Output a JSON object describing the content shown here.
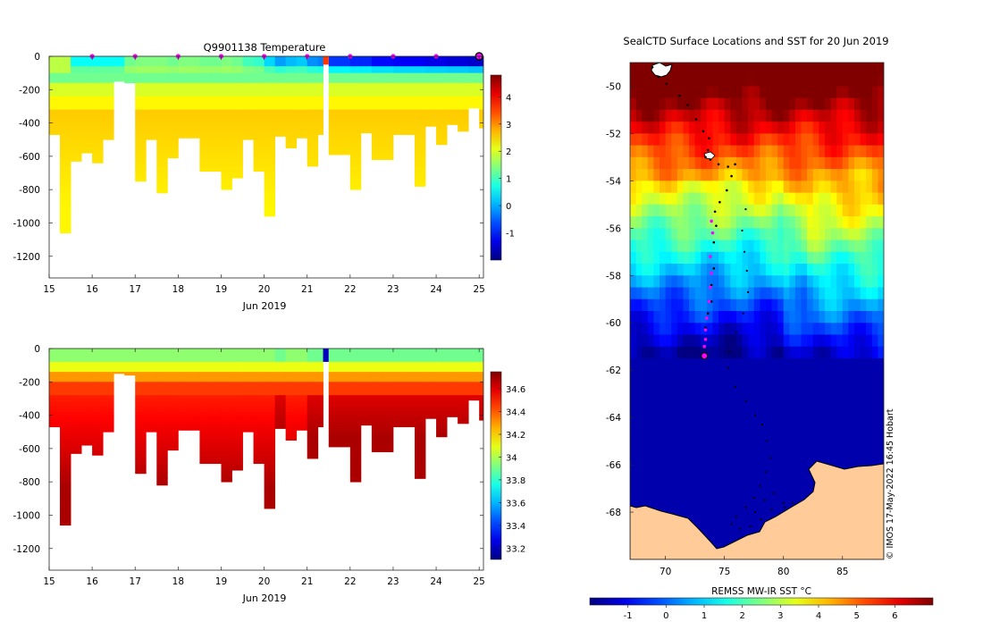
{
  "figure": {
    "credit": "© IMOS 17-May-2022 16:45 Hobart"
  },
  "chart_data": [
    {
      "id": "temperature",
      "type": "heatmap",
      "title": "Q9901138  Temperature",
      "xlabel": "Jun 2019",
      "ylabel": "",
      "xlim": [
        15,
        25.1
      ],
      "ylim": [
        -1330,
        0
      ],
      "x_ticks": [
        15,
        16,
        17,
        18,
        19,
        20,
        21,
        22,
        23,
        24,
        25
      ],
      "y_ticks": [
        0,
        -200,
        -400,
        -600,
        -800,
        -1000,
        -1200
      ],
      "surface_markers_days": [
        16,
        17,
        18,
        19,
        20,
        21,
        22,
        23,
        24
      ],
      "highlight_day": 25,
      "colorbar": {
        "min": -2,
        "max": 4.8,
        "ticks": [
          -1,
          0,
          1,
          2,
          3,
          4
        ]
      },
      "profiles": [
        {
          "day": 15.0,
          "w": 0.25,
          "max_depth": 470,
          "surface": 1.8
        },
        {
          "day": 15.25,
          "w": 0.25,
          "max_depth": 1060,
          "surface": 1.8
        },
        {
          "day": 15.5,
          "w": 0.25,
          "max_depth": 630,
          "surface": 0.6
        },
        {
          "day": 15.75,
          "w": 0.25,
          "max_depth": 580,
          "surface": 0.6
        },
        {
          "day": 16.0,
          "w": 0.25,
          "max_depth": 640,
          "surface": 0.6
        },
        {
          "day": 16.25,
          "w": 0.25,
          "max_depth": 500,
          "surface": 0.6
        },
        {
          "day": 16.5,
          "w": 0.25,
          "max_depth": 150,
          "surface": 0.6
        },
        {
          "day": 16.75,
          "w": 0.25,
          "max_depth": 160,
          "surface": 1.3
        },
        {
          "day": 17.0,
          "w": 0.25,
          "max_depth": 750,
          "surface": 1.4
        },
        {
          "day": 17.25,
          "w": 0.25,
          "max_depth": 500,
          "surface": 1.4
        },
        {
          "day": 17.5,
          "w": 0.25,
          "max_depth": 820,
          "surface": 1.4
        },
        {
          "day": 17.75,
          "w": 0.25,
          "max_depth": 610,
          "surface": 1.3
        },
        {
          "day": 18.0,
          "w": 0.25,
          "max_depth": 490,
          "surface": 1.4
        },
        {
          "day": 18.25,
          "w": 0.25,
          "max_depth": 490,
          "surface": 1.4
        },
        {
          "day": 18.5,
          "w": 0.25,
          "max_depth": 690,
          "surface": 1.3
        },
        {
          "day": 18.75,
          "w": 0.25,
          "max_depth": 690,
          "surface": 1.3
        },
        {
          "day": 19.0,
          "w": 0.25,
          "max_depth": 800,
          "surface": 1.4
        },
        {
          "day": 19.25,
          "w": 0.25,
          "max_depth": 730,
          "surface": 1.3
        },
        {
          "day": 19.5,
          "w": 0.25,
          "max_depth": 500,
          "surface": 1.0
        },
        {
          "day": 19.75,
          "w": 0.25,
          "max_depth": 690,
          "surface": 0.9
        },
        {
          "day": 20.0,
          "w": 0.25,
          "max_depth": 960,
          "surface": 0.3
        },
        {
          "day": 20.25,
          "w": 0.25,
          "max_depth": 480,
          "surface": -0.1
        },
        {
          "day": 20.5,
          "w": 0.25,
          "max_depth": 550,
          "surface": 0.1
        },
        {
          "day": 20.75,
          "w": 0.25,
          "max_depth": 490,
          "surface": 0.2
        },
        {
          "day": 21.0,
          "w": 0.25,
          "max_depth": 660,
          "surface": -0.2
        },
        {
          "day": 21.25,
          "w": 0.12,
          "max_depth": 470,
          "surface": -0.3
        },
        {
          "day": 21.5,
          "w": 0.25,
          "max_depth": 590,
          "surface": -0.8
        },
        {
          "day": 21.75,
          "w": 0.25,
          "max_depth": 590,
          "surface": -0.8
        },
        {
          "day": 22.0,
          "w": 0.25,
          "max_depth": 800,
          "surface": -0.9
        },
        {
          "day": 22.25,
          "w": 0.25,
          "max_depth": 460,
          "surface": -0.9
        },
        {
          "day": 22.5,
          "w": 0.25,
          "max_depth": 620,
          "surface": -1.1
        },
        {
          "day": 22.75,
          "w": 0.25,
          "max_depth": 620,
          "surface": -1.1
        },
        {
          "day": 23.0,
          "w": 0.25,
          "max_depth": 470,
          "surface": -1.2
        },
        {
          "day": 23.25,
          "w": 0.25,
          "max_depth": 470,
          "surface": -1.2
        },
        {
          "day": 23.5,
          "w": 0.25,
          "max_depth": 780,
          "surface": -1.2
        },
        {
          "day": 23.75,
          "w": 0.25,
          "max_depth": 420,
          "surface": -1.3
        },
        {
          "day": 24.0,
          "w": 0.25,
          "max_depth": 530,
          "surface": -1.3
        },
        {
          "day": 24.25,
          "w": 0.25,
          "max_depth": 410,
          "surface": -1.4
        },
        {
          "day": 24.5,
          "w": 0.25,
          "max_depth": 450,
          "surface": -1.4
        },
        {
          "day": 24.75,
          "w": 0.25,
          "max_depth": 310,
          "surface": -1.5
        },
        {
          "day": 25.0,
          "w": 0.1,
          "max_depth": 430,
          "surface": -1.5
        }
      ],
      "gap": {
        "day": 21.37,
        "w": 0.13,
        "max_depth": 50,
        "value": 3.6
      }
    },
    {
      "id": "salinity",
      "type": "heatmap",
      "title": "",
      "xlabel": "Jun 2019",
      "ylabel": "",
      "xlim": [
        15,
        25.1
      ],
      "ylim": [
        -1330,
        0
      ],
      "x_ticks": [
        15,
        16,
        17,
        18,
        19,
        20,
        21,
        22,
        23,
        24,
        25
      ],
      "y_ticks": [
        0,
        -200,
        -400,
        -600,
        -800,
        -1000,
        -1200
      ],
      "colorbar": {
        "min": 33.1,
        "max": 34.75,
        "ticks": [
          33.2,
          33.4,
          33.6,
          33.8,
          34,
          34.2,
          34.4,
          34.6
        ]
      },
      "surface_value": 33.95,
      "deep_value": 34.68,
      "gap": {
        "day": 21.37,
        "w": 0.13,
        "max_depth": 80,
        "value": 33.2
      }
    },
    {
      "id": "sst_map",
      "type": "heatmap",
      "title": "SealCTD Surface Locations and SST for 20 Jun 2019",
      "xlabel": "",
      "ylabel": "",
      "lon_range": [
        67,
        88.5
      ],
      "lat_range": [
        -70,
        -49
      ],
      "x_ticks": [
        70,
        75,
        80,
        85
      ],
      "y_ticks": [
        -50,
        -52,
        -54,
        -56,
        -58,
        -60,
        -62,
        -64,
        -66,
        -68
      ],
      "colorbar": {
        "label": "REMSS MW-IR SST °C",
        "min": -2,
        "max": 7,
        "ticks": [
          -1,
          0,
          1,
          2,
          3,
          4,
          5,
          6
        ]
      },
      "current_position": {
        "lon": 73.3,
        "lat": -61.4
      },
      "track": [
        [
          68.9,
          -49.2
        ],
        [
          69.4,
          -49.6
        ],
        [
          70.1,
          -49.9
        ],
        [
          71.2,
          -50.4
        ],
        [
          71.9,
          -50.8
        ],
        [
          72.6,
          -51.4
        ],
        [
          73.2,
          -51.9
        ],
        [
          73.7,
          -52.2
        ],
        [
          73.6,
          -52.7
        ],
        [
          73.4,
          -53.0
        ],
        [
          73.8,
          -53.1
        ],
        [
          74.5,
          -53.3
        ],
        [
          75.3,
          -53.4
        ],
        [
          75.9,
          -53.3
        ],
        [
          75.6,
          -53.8
        ],
        [
          75.2,
          -54.4
        ],
        [
          74.6,
          -54.9
        ],
        [
          74.2,
          -55.3
        ],
        [
          74.3,
          -55.9
        ],
        [
          74.1,
          -56.6
        ],
        [
          73.8,
          -57.2
        ],
        [
          74.1,
          -57.7
        ],
        [
          73.9,
          -58.4
        ],
        [
          73.9,
          -59.1
        ],
        [
          73.6,
          -59.6
        ],
        [
          73.4,
          -60.2
        ],
        [
          73.5,
          -60.7
        ],
        [
          73.3,
          -61.4
        ]
      ],
      "track_recent": [
        [
          73.9,
          -55.7
        ],
        [
          74.0,
          -56.2
        ],
        [
          73.8,
          -57.2
        ],
        [
          73.9,
          -57.9
        ],
        [
          73.8,
          -58.5
        ],
        [
          73.7,
          -59.1
        ],
        [
          73.5,
          -59.8
        ],
        [
          73.4,
          -60.3
        ],
        [
          73.4,
          -60.7
        ],
        [
          73.3,
          -61.0
        ]
      ],
      "track_south": [
        [
          76.8,
          -55.2
        ],
        [
          76.5,
          -56.1
        ],
        [
          76.7,
          -57.0
        ],
        [
          76.9,
          -57.8
        ],
        [
          77.0,
          -58.7
        ],
        [
          76.6,
          -59.6
        ],
        [
          76.0,
          -60.4
        ],
        [
          75.4,
          -61.2
        ],
        [
          75.3,
          -61.9
        ],
        [
          75.9,
          -62.7
        ],
        [
          76.8,
          -63.3
        ],
        [
          77.6,
          -63.9
        ],
        [
          78.2,
          -64.3
        ],
        [
          78.6,
          -65.0
        ],
        [
          78.9,
          -65.7
        ],
        [
          78.5,
          -66.3
        ],
        [
          78.0,
          -66.9
        ],
        [
          77.5,
          -67.4
        ],
        [
          76.8,
          -67.8
        ],
        [
          76.0,
          -68.2
        ],
        [
          75.6,
          -68.5
        ],
        [
          76.3,
          -68.7
        ],
        [
          77.2,
          -68.6
        ],
        [
          78.1,
          -68.3
        ],
        [
          79.0,
          -67.9
        ],
        [
          80.0,
          -67.6
        ],
        [
          80.8,
          -67.6
        ],
        [
          80.1,
          -67.8
        ],
        [
          79.2,
          -67.2
        ],
        [
          78.4,
          -67.5
        ],
        [
          77.6,
          -68.0
        ]
      ]
    }
  ]
}
